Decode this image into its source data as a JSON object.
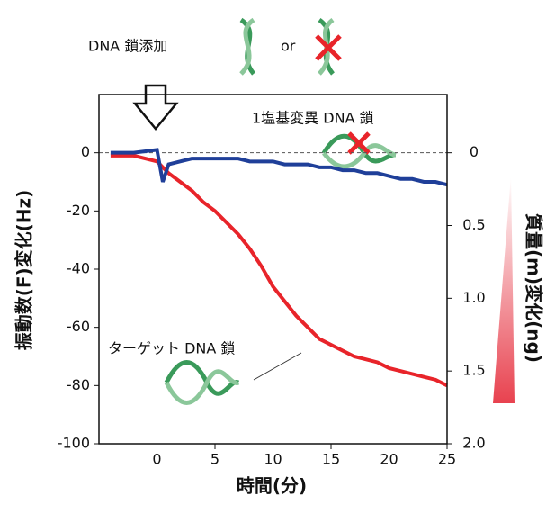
{
  "chart_data": {
    "type": "line",
    "x_label": "時間(分)",
    "y_label": "振動数(F)変化(Hz)",
    "y2_label": "質量(m)変化(ng)",
    "annotations": [
      "DNA 鎖添加",
      "or",
      "1塩基変異 DNA 鎖",
      "ターゲット DNA 鎖"
    ],
    "x": [
      -4,
      -2,
      0,
      0.5,
      1,
      2,
      3,
      4,
      5,
      6,
      7,
      8,
      9,
      10,
      11,
      12,
      13,
      14,
      15,
      16,
      17,
      18,
      19,
      20,
      21,
      22,
      23,
      24,
      25
    ],
    "series": [
      {
        "color": "#e8242a",
        "values": [
          -1,
          -1,
          -3,
          -5,
          -7,
          -10,
          -13,
          -17,
          -20,
          -24,
          -28,
          -33,
          -39,
          -46,
          -51,
          -56,
          -60,
          -64,
          -66,
          -68,
          -70,
          -71,
          -72,
          -74,
          -75,
          -76,
          -77,
          -78,
          -80
        ]
      },
      {
        "color": "#1f3f99",
        "values": [
          0,
          0,
          1,
          -10,
          -4,
          -3,
          -2,
          -2,
          -2,
          -2,
          -2,
          -3,
          -3,
          -3,
          -4,
          -4,
          -4,
          -5,
          -5,
          -6,
          -6,
          -7,
          -7,
          -8,
          -9,
          -9,
          -10,
          -10,
          -11
        ]
      }
    ],
    "xlim": [
      -5,
      25
    ],
    "xticks": [
      0,
      5,
      10,
      15,
      20,
      25
    ],
    "ylim": [
      -100,
      20
    ],
    "yticks": [
      0,
      -20,
      -40,
      -60,
      -80,
      -100
    ],
    "y2lim": [
      2.0,
      -0.4
    ],
    "y2ticks": [
      0,
      0.5,
      {
        "value": 1,
        "label": "1.0"
      },
      1.5,
      {
        "value": 2,
        "label": "2.0"
      }
    ],
    "zero_line": true
  }
}
